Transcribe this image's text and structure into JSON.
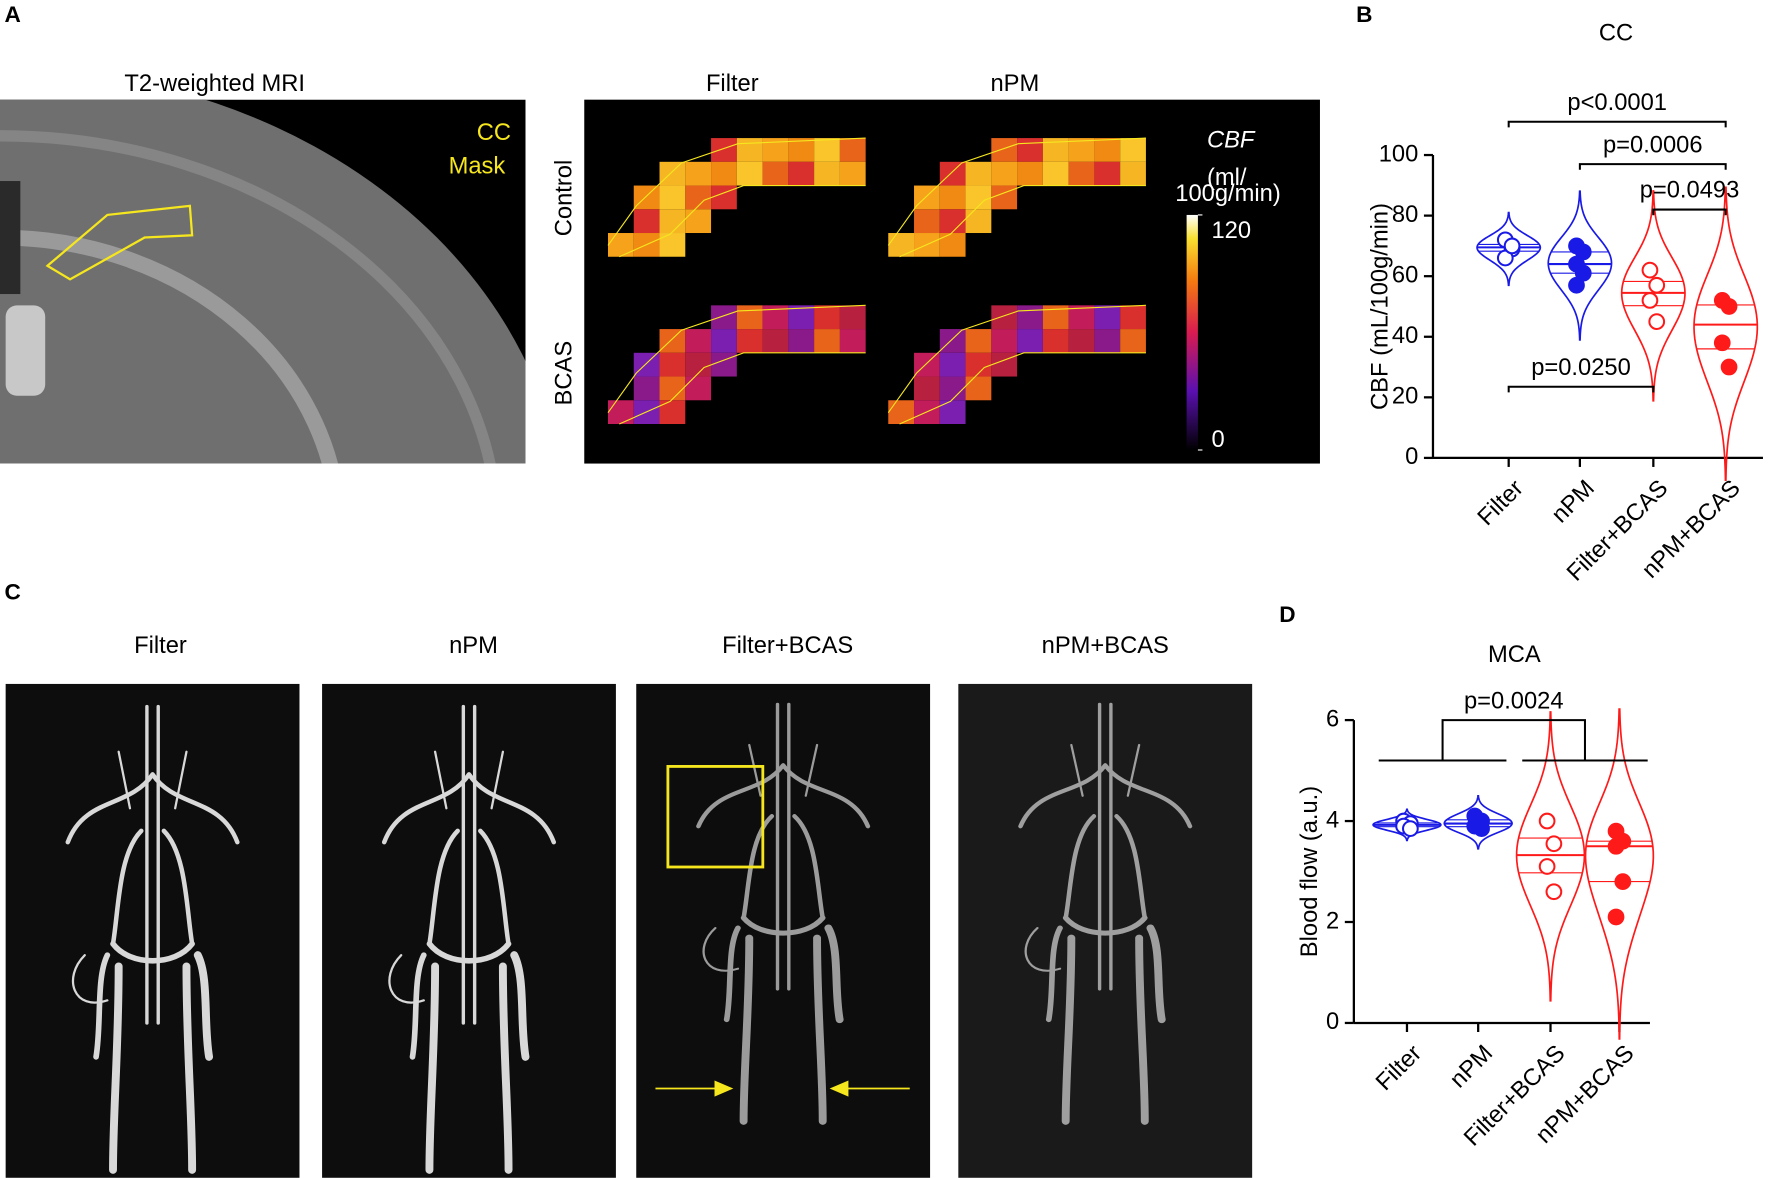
{
  "panel_a": {
    "label": "A",
    "mri_title": "T2-weighted MRI",
    "mask_label": [
      "CC",
      "Mask"
    ],
    "columns": [
      "Filter",
      "nPM"
    ],
    "rows": [
      "Control",
      "BCAS"
    ],
    "colorbar": {
      "title": "CBF",
      "unit_lines": [
        "(ml/",
        "100g/min)"
      ],
      "clim": [
        0,
        120
      ],
      "ticks": [
        0,
        120
      ]
    }
  },
  "panel_c": {
    "label": "C",
    "titles": [
      "Filter",
      "nPM",
      "Filter+BCAS",
      "nPM+BCAS"
    ]
  },
  "chart_data": [
    {
      "type": "violin",
      "panel_label": "B",
      "title": "CC",
      "y_label": "CBF (mL/100g/min)",
      "ylim": [
        0,
        100
      ],
      "yticks": [
        0,
        20,
        40,
        60,
        80,
        100
      ],
      "groups": [
        {
          "label": "Filter",
          "color": "#1a1ae6",
          "filled": false,
          "values": [
            72,
            69,
            66,
            70
          ]
        },
        {
          "label": "nPM",
          "color": "#1a1ae6",
          "filled": true,
          "values": [
            70,
            68,
            64,
            61,
            57
          ]
        },
        {
          "label": "Filter+BCAS",
          "color": "#ff1a1a",
          "filled": false,
          "values": [
            62,
            57,
            52,
            45
          ]
        },
        {
          "label": "nPM+BCAS",
          "color": "#ff1a1a",
          "filled": true,
          "values": [
            52,
            50,
            38,
            30
          ]
        }
      ],
      "annotations": [
        {
          "text": "p<0.0001",
          "groups": [
            0,
            3
          ],
          "y": 111
        },
        {
          "text": "p=0.0006",
          "groups": [
            1,
            3
          ],
          "y": 97
        },
        {
          "text": "p=0.0493",
          "groups": [
            2,
            3
          ],
          "y": 82
        },
        {
          "text": "p=0.0250",
          "groups": [
            0,
            2
          ],
          "y": 23.5
        }
      ]
    },
    {
      "type": "violin",
      "panel_label": "D",
      "title": "MCA",
      "y_label": "Blood flow (a.u.)",
      "ylim": [
        0,
        6
      ],
      "yticks": [
        0,
        2,
        4,
        6
      ],
      "groups": [
        {
          "label": "Filter",
          "color": "#1a1ae6",
          "filled": false,
          "values": [
            4.0,
            3.95,
            3.9,
            3.85
          ]
        },
        {
          "label": "nPM",
          "color": "#1a1ae6",
          "filled": true,
          "values": [
            4.1,
            4.0,
            3.9,
            3.85
          ]
        },
        {
          "label": "Filter+BCAS",
          "color": "#ff1a1a",
          "filled": false,
          "values": [
            4.0,
            3.55,
            3.1,
            2.6
          ]
        },
        {
          "label": "nPM+BCAS",
          "color": "#ff1a1a",
          "filled": true,
          "values": [
            3.8,
            3.6,
            3.5,
            2.8,
            2.1
          ]
        }
      ],
      "annotations": [
        {
          "text": "p=0.0024",
          "groups": [
            [
              0,
              1
            ],
            [
              2,
              3
            ]
          ],
          "y": 6,
          "sub_y": 5.2
        }
      ]
    }
  ]
}
